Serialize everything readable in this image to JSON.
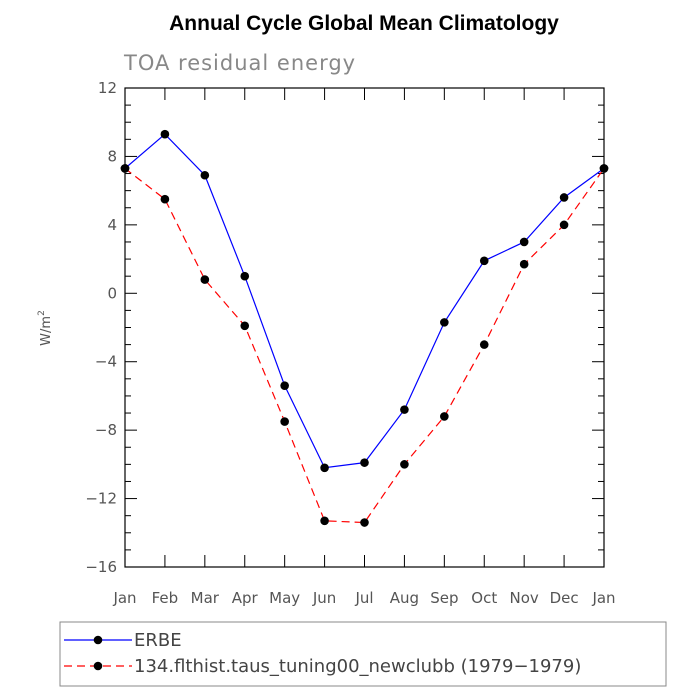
{
  "chart_data": {
    "type": "line",
    "title": "Annual Cycle Global Mean Climatology",
    "subtitle": "TOA residual energy",
    "ylabel": "W/m",
    "ylabel_sup": "2",
    "xlabel": "",
    "ylim": [
      -16,
      12
    ],
    "yticks": [
      12,
      8,
      4,
      0,
      -4,
      -8,
      -12,
      -16
    ],
    "ytick_labels": [
      "12",
      "8",
      "4",
      "0",
      "−4",
      "−8",
      "−12",
      "−16"
    ],
    "categories": [
      "Jan",
      "Feb",
      "Mar",
      "Apr",
      "May",
      "Jun",
      "Jul",
      "Aug",
      "Sep",
      "Oct",
      "Nov",
      "Dec",
      "Jan"
    ],
    "series": [
      {
        "name": "ERBE",
        "color": "#0000ff",
        "dash": "solid",
        "values": [
          7.3,
          9.3,
          6.9,
          1.0,
          -5.4,
          -10.2,
          -9.9,
          -6.8,
          -1.7,
          1.9,
          3.0,
          5.6,
          7.3
        ]
      },
      {
        "name": "134.flthist.taus_tuning00_newclubb (1979−1979)",
        "color": "#ff0000",
        "dash": "dashed",
        "values": [
          7.3,
          5.5,
          0.8,
          -1.9,
          -7.5,
          -13.3,
          -13.4,
          -10.0,
          -7.2,
          -3.0,
          1.7,
          4.0,
          7.3
        ]
      }
    ],
    "legend_position": "bottom"
  }
}
